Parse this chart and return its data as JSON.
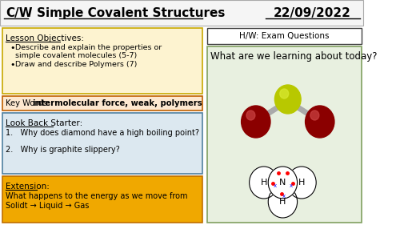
{
  "title_cw": "C/W",
  "title_main": "Simple Covalent Structures",
  "title_date": "22/09/2022",
  "bg_color": "#ffffff",
  "header_bg": "#f5f5f5",
  "lesson_obj_bg": "#fdf3d0",
  "lesson_obj_border": "#c8a800",
  "keyword_bg": "#fde8d0",
  "keyword_border": "#c06000",
  "lookback_bg": "#dce8f0",
  "lookback_border": "#5080a0",
  "extension_bg": "#f0a800",
  "extension_border": "#c07000",
  "right_panel_bg": "#e8f0e0",
  "right_panel_border": "#80a060",
  "hw_box_border": "#404040",
  "lesson_objectives_title": "Lesson Objectives:",
  "lesson_objectives_1": "Describe and explain the properties or",
  "lesson_objectives_1b": "simple covalent molecules (5-7)",
  "lesson_objectives_2": "Draw and describe Polymers (7)",
  "keywords_label": "Key Words: ",
  "keywords_bold": "intermolecular force, weak, polymers",
  "lookback_title": "Look Back Starter:",
  "lookback_q1": "1.   Why does diamond have a high boiling point?",
  "lookback_q2": "2.   Why is graphite slippery?",
  "extension_title": "Extension:",
  "extension_text1": "What happens to the energy as we move from",
  "extension_text2": "Solidt → Liquid → Gas",
  "hw_text": "H/W: Exam Questions",
  "right_question": "What are we learning about today?"
}
